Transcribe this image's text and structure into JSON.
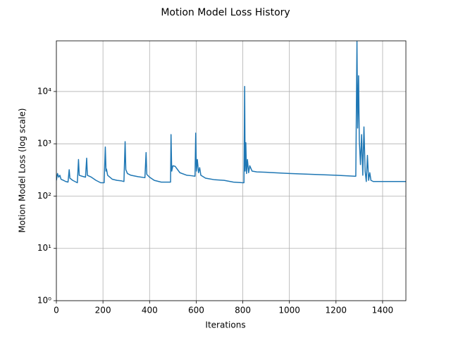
{
  "chart_data": {
    "type": "line",
    "title": "Motion Model Loss History",
    "xlabel": "Iterations",
    "ylabel": "Motion Model Loss (log scale)",
    "yscale": "log",
    "grid": true,
    "color": "#1f77b4",
    "xlim": [
      0,
      1500
    ],
    "xticks": [
      0,
      200,
      400,
      600,
      800,
      1000,
      1200,
      1400
    ],
    "ylim": [
      1,
      93000
    ],
    "yticks": [
      {
        "value": 1,
        "label": "10⁰"
      },
      {
        "value": 10,
        "label": "10¹"
      },
      {
        "value": 100,
        "label": "10²"
      },
      {
        "value": 1000,
        "label": "10³"
      },
      {
        "value": 10000,
        "label": "10⁴"
      }
    ],
    "x": [
      0,
      5,
      10,
      15,
      20,
      30,
      40,
      50,
      55,
      58,
      70,
      90,
      95,
      98,
      110,
      125,
      130,
      133,
      150,
      170,
      190,
      205,
      210,
      213,
      215,
      220,
      240,
      260,
      280,
      290,
      295,
      298,
      305,
      320,
      350,
      380,
      385,
      388,
      400,
      420,
      450,
      480,
      490,
      492,
      495,
      500,
      510,
      530,
      560,
      580,
      595,
      598,
      601,
      605,
      610,
      615,
      620,
      640,
      680,
      720,
      760,
      800,
      805,
      808,
      810,
      813,
      816,
      820,
      825,
      830,
      840,
      860,
      900,
      1000,
      1100,
      1200,
      1280,
      1285,
      1290,
      1293,
      1297,
      1300,
      1305,
      1310,
      1315,
      1320,
      1325,
      1330,
      1335,
      1340,
      1345,
      1350,
      1360,
      1400,
      1500
    ],
    "values": [
      200,
      270,
      230,
      250,
      210,
      200,
      190,
      185,
      320,
      220,
      200,
      180,
      500,
      250,
      240,
      230,
      530,
      250,
      230,
      200,
      180,
      180,
      870,
      300,
      330,
      250,
      210,
      200,
      195,
      190,
      1100,
      320,
      270,
      250,
      235,
      225,
      680,
      260,
      230,
      200,
      185,
      185,
      185,
      1500,
      300,
      380,
      370,
      280,
      250,
      245,
      240,
      1600,
      300,
      500,
      280,
      350,
      250,
      220,
      205,
      200,
      185,
      180,
      180,
      12500,
      300,
      1050,
      270,
      500,
      280,
      380,
      300,
      290,
      285,
      270,
      260,
      250,
      240,
      240,
      90000,
      2000,
      20000,
      1200,
      400,
      1500,
      250,
      2100,
      300,
      190,
      600,
      200,
      280,
      200,
      190,
      190,
      190
    ]
  }
}
